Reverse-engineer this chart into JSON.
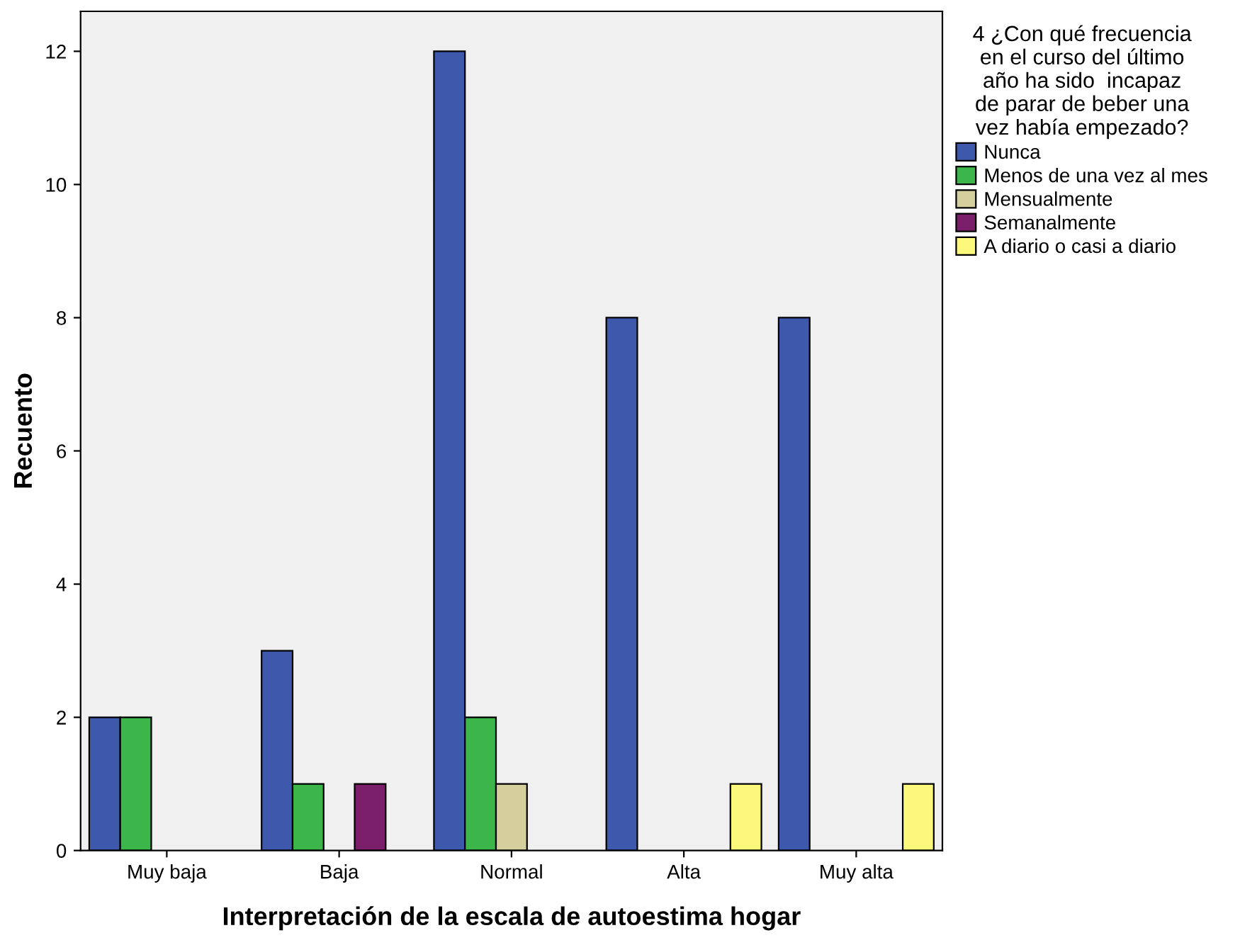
{
  "chart_data": {
    "type": "bar",
    "xlabel": "Interpretación de la escala de autoestima hogar",
    "ylabel": "Recuento",
    "legend_title": "4 ¿Con qué frecuencia\nen el curso del último\naño ha sido  incapaz\nde parar de beber una\nvez había empezado?",
    "categories": [
      "Muy baja",
      "Baja",
      "Normal",
      "Alta",
      "Muy alta"
    ],
    "series": [
      {
        "name": "Nunca",
        "color": "#3e58ac",
        "values": [
          2,
          3,
          12,
          8,
          8
        ]
      },
      {
        "name": "Menos de una vez al mes",
        "color": "#3cb54a",
        "values": [
          2,
          1,
          2,
          null,
          null
        ]
      },
      {
        "name": "Mensualmente",
        "color": "#d4cf9c",
        "values": [
          null,
          null,
          1,
          null,
          null
        ]
      },
      {
        "name": "Semanalmente",
        "color": "#7b1f6a",
        "values": [
          null,
          1,
          null,
          null,
          null
        ]
      },
      {
        "name": "A diario o casi a diario",
        "color": "#fbf87c",
        "values": [
          null,
          null,
          null,
          1,
          1
        ]
      }
    ],
    "ylim": [
      0,
      12.6
    ],
    "yticks": [
      0,
      2,
      4,
      6,
      8,
      10,
      12
    ],
    "grid": false,
    "legend": "top right"
  }
}
